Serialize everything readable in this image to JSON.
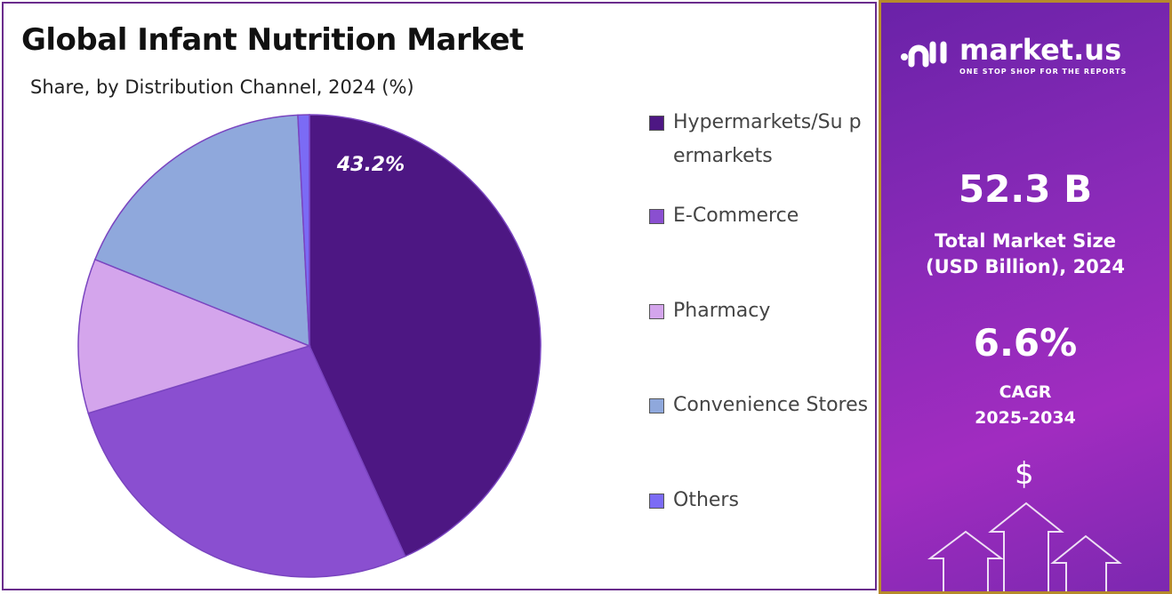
{
  "chart_data": {
    "type": "pie",
    "title": "Global Infant Nutrition Market",
    "subtitle": "Share, by Distribution Channel, 2024 (%)",
    "categories": [
      "Hypermarkets/Supermarkets",
      "E-Commerce",
      "Pharmacy",
      "Convenience Stores",
      "Others"
    ],
    "legend_labels": [
      "Hypermarkets/Su permarkets",
      "E-Commerce",
      "Pharmacy",
      "Convenience Stores",
      "Others"
    ],
    "values": [
      43.2,
      27.1,
      10.8,
      18.1,
      0.8
    ],
    "colors": [
      "#4d1783",
      "#8a4fd0",
      "#d4a5ec",
      "#8fa8dc",
      "#7b6bf5"
    ],
    "data_labels": [
      "43.2%",
      "",
      "",
      "",
      ""
    ],
    "legend_placement": "right"
  },
  "panel": {
    "brand": "market.us",
    "tagline": "ONE STOP SHOP FOR THE REPORTS",
    "market_size": "52.3 B",
    "market_size_label1": "Total Market Size",
    "market_size_label2": "(USD Billion), 2024",
    "cagr": "6.6%",
    "cagr_label1": "CAGR",
    "cagr_label2": "2025-2034",
    "dollar": "$"
  }
}
